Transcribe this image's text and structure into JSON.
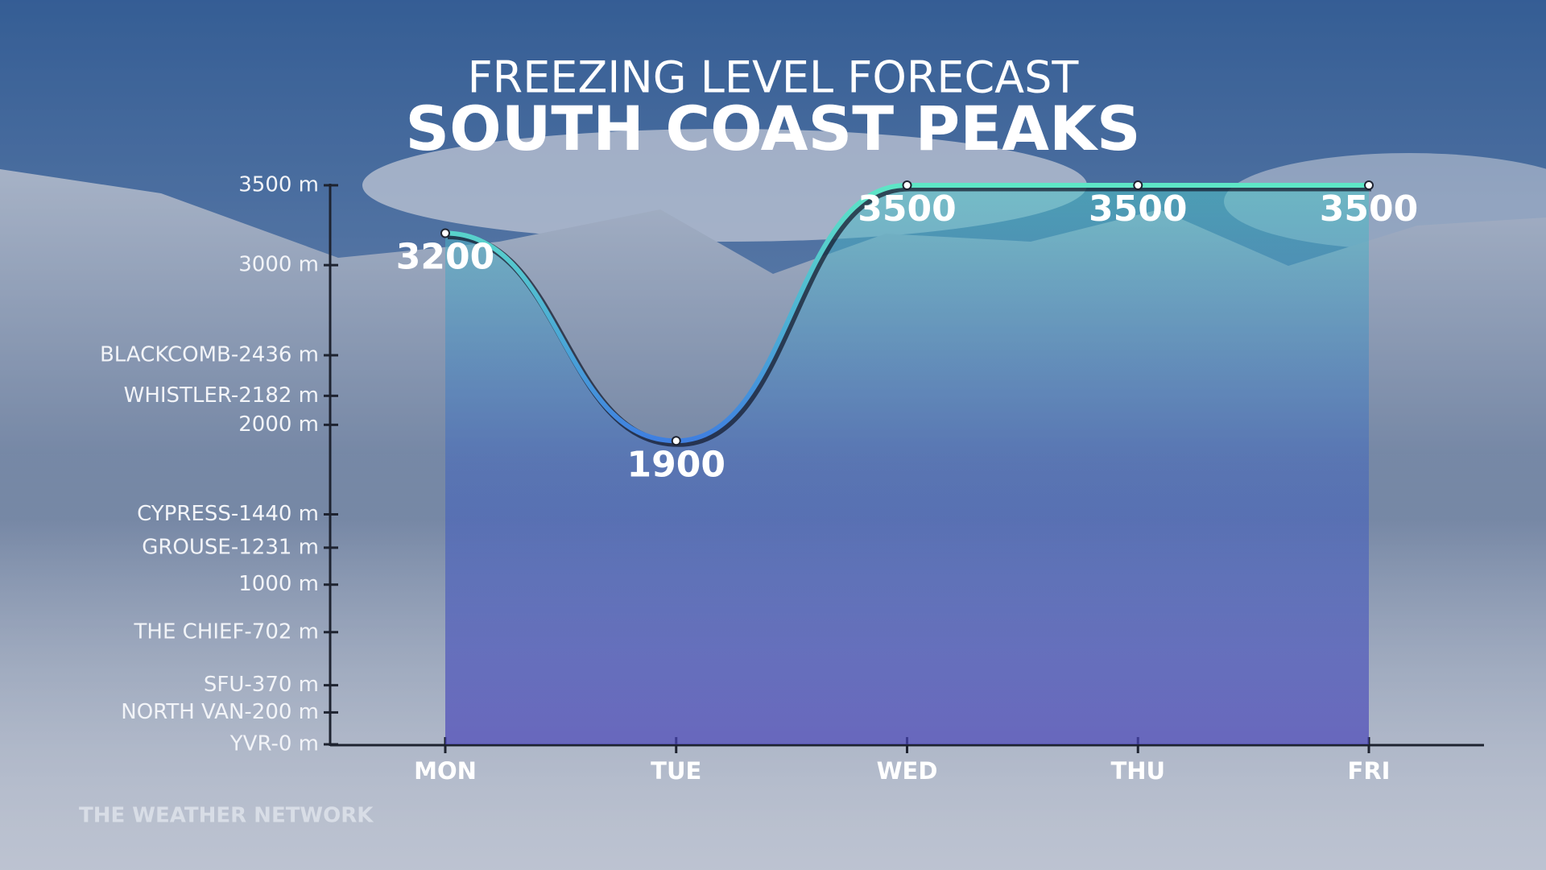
{
  "chart_data": {
    "type": "line",
    "title": "FREEZING LEVEL FORECAST",
    "subtitle": "SOUTH COAST PEAKS",
    "source": "THE WEATHER NETWORK",
    "categories": [
      "MON",
      "TUE",
      "WED",
      "THU",
      "FRI"
    ],
    "series": [
      {
        "name": "Freezing level",
        "color": "#5ee6c6",
        "values": [
          3200,
          1900,
          3500,
          3500,
          3500
        ]
      }
    ],
    "ylim": [
      0,
      3500
    ],
    "yticks": [
      {
        "value": 3500,
        "label": "3500 m"
      },
      {
        "value": 3000,
        "label": "3000 m"
      },
      {
        "value": 2436,
        "label": "BLACKCOMB-2436 m"
      },
      {
        "value": 2182,
        "label": "WHISTLER-2182 m"
      },
      {
        "value": 2000,
        "label": "2000 m"
      },
      {
        "value": 1440,
        "label": "CYPRESS-1440 m"
      },
      {
        "value": 1231,
        "label": "GROUSE-1231 m"
      },
      {
        "value": 1000,
        "label": "1000 m"
      },
      {
        "value": 702,
        "label": "THE CHIEF-702 m"
      },
      {
        "value": 370,
        "label": "SFU-370 m"
      },
      {
        "value": 200,
        "label": "NORTH VAN-200 m"
      },
      {
        "value": 0,
        "label": "YVR-0 m"
      }
    ],
    "grid": false
  }
}
